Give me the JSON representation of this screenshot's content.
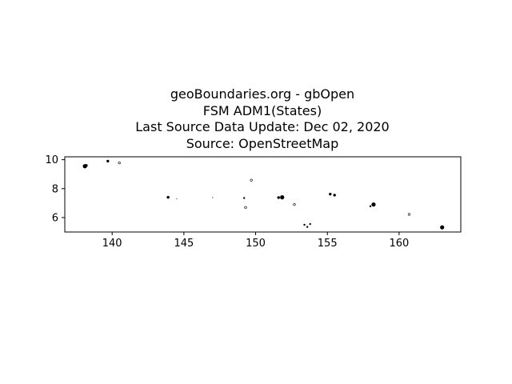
{
  "title_lines": [
    "geoBoundaries.org - gbOpen",
    "FSM ADM1(States)",
    "Last Source Data Update: Dec 02, 2020",
    "Source: OpenStreetMap"
  ],
  "colors": {
    "background": "#ffffff",
    "axes_frame": "#000000",
    "boundaries": "#000000"
  },
  "chart_data": {
    "type": "scatter",
    "title": "geoBoundaries.org - gbOpen\nFSM ADM1(States)\nLast Source Data Update: Dec 02, 2020\nSource: OpenStreetMap",
    "xlabel": "",
    "ylabel": "",
    "xlim": [
      136.7,
      164.3
    ],
    "ylim": [
      5.0,
      10.2
    ],
    "xticks": [
      140,
      145,
      150,
      155,
      160
    ],
    "yticks": [
      6,
      8,
      10
    ],
    "grid": false,
    "legend": "none",
    "islands": [
      {
        "x": 138.1,
        "y": 9.55,
        "size": "large"
      },
      {
        "x": 138.2,
        "y": 9.6,
        "size": "medium"
      },
      {
        "x": 139.7,
        "y": 9.9,
        "size": "medium"
      },
      {
        "x": 140.5,
        "y": 9.78,
        "size": "outline"
      },
      {
        "x": 143.9,
        "y": 7.4,
        "size": "medium"
      },
      {
        "x": 144.5,
        "y": 7.3,
        "size": "tiny"
      },
      {
        "x": 147.0,
        "y": 7.38,
        "size": "tiny"
      },
      {
        "x": 149.2,
        "y": 7.35,
        "size": "small"
      },
      {
        "x": 149.3,
        "y": 6.7,
        "size": "outline"
      },
      {
        "x": 149.7,
        "y": 8.58,
        "size": "outline"
      },
      {
        "x": 151.6,
        "y": 7.38,
        "size": "medium"
      },
      {
        "x": 151.85,
        "y": 7.4,
        "size": "large"
      },
      {
        "x": 152.7,
        "y": 6.9,
        "size": "outline"
      },
      {
        "x": 153.4,
        "y": 5.5,
        "size": "small"
      },
      {
        "x": 153.6,
        "y": 5.35,
        "size": "small"
      },
      {
        "x": 153.8,
        "y": 5.55,
        "size": "small"
      },
      {
        "x": 155.2,
        "y": 7.62,
        "size": "medium"
      },
      {
        "x": 155.5,
        "y": 7.55,
        "size": "medium"
      },
      {
        "x": 158.22,
        "y": 6.9,
        "size": "large"
      },
      {
        "x": 158.0,
        "y": 6.78,
        "size": "small"
      },
      {
        "x": 160.7,
        "y": 6.22,
        "size": "outline"
      },
      {
        "x": 163.0,
        "y": 5.32,
        "size": "large"
      }
    ]
  }
}
